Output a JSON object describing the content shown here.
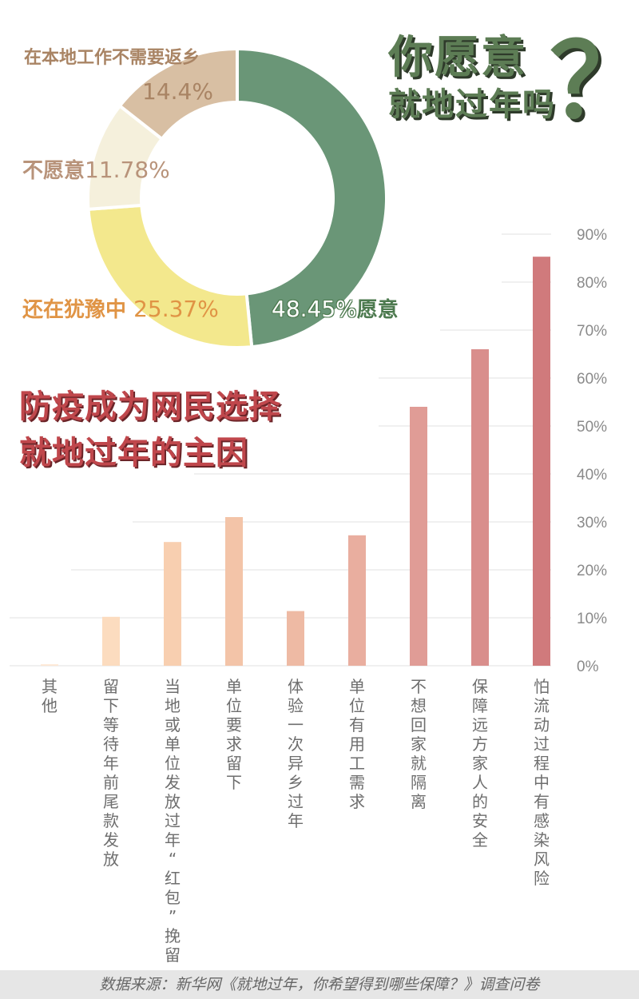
{
  "title": {
    "line1": "你愿意",
    "line2": "就地过年吗",
    "qmark": "？"
  },
  "headline": {
    "line1": "防疫成为网民选择",
    "line2": "就地过年的主因"
  },
  "footer": "数据来源：新华网《就地过年，你希望得到哪些保障？》调查问卷",
  "colors": {
    "title_green": "#5d7d55",
    "headline_red": "#c0474c",
    "donut": [
      "#6a9677",
      "#f3e88d",
      "#f5f0dc",
      "#d8bfa3"
    ]
  },
  "chart_data": [
    {
      "type": "pie",
      "variant": "donut",
      "slices": [
        {
          "label": "愿意",
          "value": 48.45,
          "value_text": "48.45%",
          "color": "#6a9677",
          "label_color": "#4d7a4f"
        },
        {
          "label": "还在犹豫中",
          "value": 25.37,
          "value_text": "25.37%",
          "color": "#f3e88d",
          "label_color": "#e09445"
        },
        {
          "label": "不愿意",
          "value": 11.78,
          "value_text": "11.78%",
          "color": "#f5f0dc",
          "label_color": "#b8937a"
        },
        {
          "label": "在本地工作不需要返乡",
          "value": 14.4,
          "value_text": "14.4%",
          "color": "#d8bfa3",
          "label_color": "#a98464"
        }
      ]
    },
    {
      "type": "bar",
      "categories": [
        "其他",
        "留下等待年前尾款发放",
        "当地或单位发放过年“红包”挽留",
        "单位要求留下",
        "体验一次异乡过年",
        "单位有用工需求",
        "不想回家就隔离",
        "保障远方家人的安全",
        "怕流动过程中有感染风险"
      ],
      "values": [
        0.3,
        10.2,
        25.8,
        31.0,
        11.4,
        27.2,
        54.0,
        66.0,
        85.3
      ],
      "colors": [
        "#fde7d4",
        "#fcdcbf",
        "#f8cfb0",
        "#f3c4a8",
        "#eebaa4",
        "#e9ae9f",
        "#e09c96",
        "#d98e8c",
        "#d07a7c"
      ],
      "ylim": [
        0,
        90
      ],
      "yticks": [
        "0%",
        "10%",
        "20%",
        "30%",
        "40%",
        "50%",
        "60%",
        "70%",
        "80%",
        "90%"
      ],
      "grid": true
    }
  ]
}
